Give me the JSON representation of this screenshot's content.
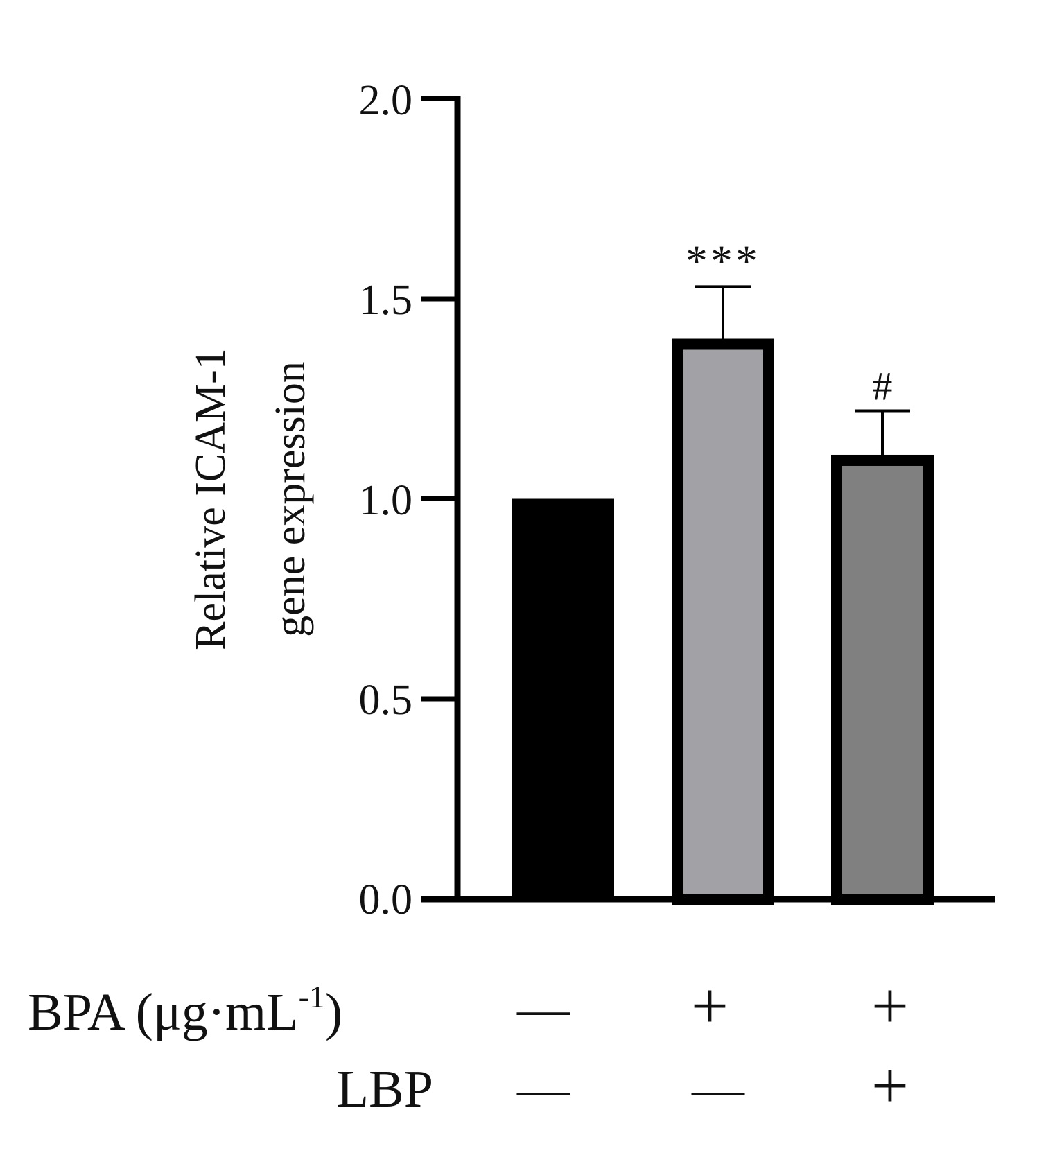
{
  "chart_data": {
    "type": "bar",
    "ylabel_lines": [
      "Relative ICAM-1",
      "gene expression"
    ],
    "ylim": [
      0,
      2.0
    ],
    "yticks": [
      "0.0",
      "0.5",
      "1.0",
      "1.5",
      "2.0"
    ],
    "grid": false,
    "legend": "none",
    "bars": [
      {
        "value": 1.0,
        "error": 0.0,
        "significance": "",
        "fill": "#000000"
      },
      {
        "value": 1.4,
        "error": 0.13,
        "significance": "***",
        "fill": "#a2a1a6"
      },
      {
        "value": 1.11,
        "error": 0.11,
        "significance": "#",
        "fill": "#808080"
      }
    ],
    "treatment_rows": [
      {
        "label_main": "BPA (μg·mL",
        "label_sup": "-1",
        "label_end": ")",
        "marks": [
          "—",
          "+",
          "+"
        ]
      },
      {
        "label_main": "LBP",
        "label_sup": "",
        "label_end": "",
        "marks": [
          "—",
          "—",
          "+"
        ]
      }
    ]
  }
}
